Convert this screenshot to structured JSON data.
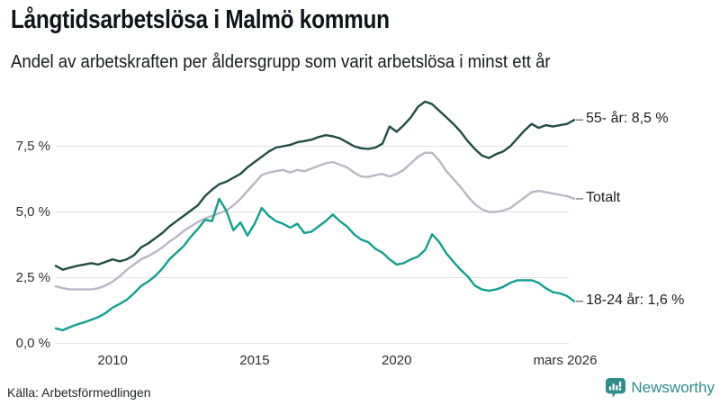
{
  "chart_data": {
    "type": "line",
    "title": "Långtidsarbetslösa i Malmö kommun",
    "subtitle": "Andel av arbetskraften per åldersgrupp som varit arbetslösa i minst ett år",
    "source": "Källa: Arbetsförmedlingen",
    "brand": "Newsworthy",
    "brand_color": "#2e8c8c",
    "x_unit": "year (quarterly points)",
    "x_start": 2008.0,
    "x_step": 0.25,
    "xlim": [
      2008.0,
      2026.25
    ],
    "ylim": [
      0,
      9.6
    ],
    "grid": "horizontal",
    "legend_position": "end-of-line-labels",
    "y_ticks": [
      {
        "value": 0,
        "label": "0,0 %"
      },
      {
        "value": 2.5,
        "label": "2,5 %"
      },
      {
        "value": 5,
        "label": "5,0 %"
      },
      {
        "value": 7.5,
        "label": "7,5 %"
      }
    ],
    "x_ticks": [
      {
        "value": 2010,
        "label": "2010"
      },
      {
        "value": 2015,
        "label": "2015"
      },
      {
        "value": 2020,
        "label": "2020"
      },
      {
        "value": 2026.17,
        "label": "mars 2026"
      }
    ],
    "series": [
      {
        "name": "55- år",
        "end_label": "55- år: 8,5 %",
        "last_value": 8.5,
        "color": "#214c41",
        "values": [
          2.95,
          2.8,
          2.88,
          2.95,
          3.0,
          3.05,
          3.0,
          3.1,
          3.2,
          3.12,
          3.2,
          3.35,
          3.65,
          3.8,
          4.0,
          4.2,
          4.45,
          4.65,
          4.85,
          5.05,
          5.25,
          5.6,
          5.85,
          6.05,
          6.15,
          6.3,
          6.45,
          6.7,
          6.9,
          7.1,
          7.3,
          7.45,
          7.5,
          7.55,
          7.65,
          7.7,
          7.75,
          7.85,
          7.92,
          7.88,
          7.8,
          7.65,
          7.5,
          7.42,
          7.4,
          7.45,
          7.6,
          8.25,
          8.05,
          8.3,
          8.6,
          9.0,
          9.2,
          9.1,
          8.85,
          8.6,
          8.35,
          8.05,
          7.7,
          7.4,
          7.15,
          7.05,
          7.2,
          7.3,
          7.5,
          7.8,
          8.1,
          8.35,
          8.2,
          8.3,
          8.25,
          8.3,
          8.35,
          8.5
        ]
      },
      {
        "name": "Totalt",
        "end_label": "Totalt",
        "last_value": 5.5,
        "color": "#b9b7c6",
        "values": [
          2.17,
          2.1,
          2.05,
          2.05,
          2.05,
          2.05,
          2.1,
          2.2,
          2.35,
          2.55,
          2.8,
          3.0,
          3.2,
          3.32,
          3.47,
          3.65,
          3.87,
          4.05,
          4.27,
          4.45,
          4.62,
          4.75,
          4.85,
          4.95,
          5.05,
          5.25,
          5.5,
          5.8,
          6.1,
          6.4,
          6.5,
          6.55,
          6.6,
          6.5,
          6.6,
          6.55,
          6.65,
          6.75,
          6.85,
          6.9,
          6.8,
          6.7,
          6.5,
          6.35,
          6.33,
          6.4,
          6.45,
          6.35,
          6.45,
          6.6,
          6.85,
          7.1,
          7.25,
          7.25,
          6.95,
          6.55,
          6.25,
          5.95,
          5.6,
          5.3,
          5.1,
          5.0,
          5.0,
          5.05,
          5.15,
          5.35,
          5.55,
          5.75,
          5.8,
          5.75,
          5.7,
          5.65,
          5.6,
          5.5
        ]
      },
      {
        "name": "18-24 år",
        "end_label": "18-24 år: 1,6 %",
        "last_value": 1.6,
        "color": "#11a08d",
        "values": [
          0.57,
          0.5,
          0.62,
          0.72,
          0.8,
          0.9,
          1.0,
          1.15,
          1.36,
          1.5,
          1.66,
          1.9,
          2.18,
          2.35,
          2.56,
          2.85,
          3.2,
          3.45,
          3.7,
          4.05,
          4.35,
          4.7,
          4.65,
          5.5,
          5.05,
          4.3,
          4.6,
          4.1,
          4.55,
          5.15,
          4.85,
          4.65,
          4.55,
          4.4,
          4.55,
          4.2,
          4.25,
          4.45,
          4.65,
          4.9,
          4.65,
          4.45,
          4.15,
          3.95,
          3.85,
          3.6,
          3.45,
          3.2,
          3.0,
          3.05,
          3.2,
          3.3,
          3.55,
          4.15,
          3.85,
          3.42,
          3.1,
          2.8,
          2.55,
          2.2,
          2.05,
          2.0,
          2.05,
          2.15,
          2.3,
          2.4,
          2.4,
          2.4,
          2.3,
          2.1,
          1.95,
          1.9,
          1.8,
          1.6
        ]
      }
    ]
  }
}
